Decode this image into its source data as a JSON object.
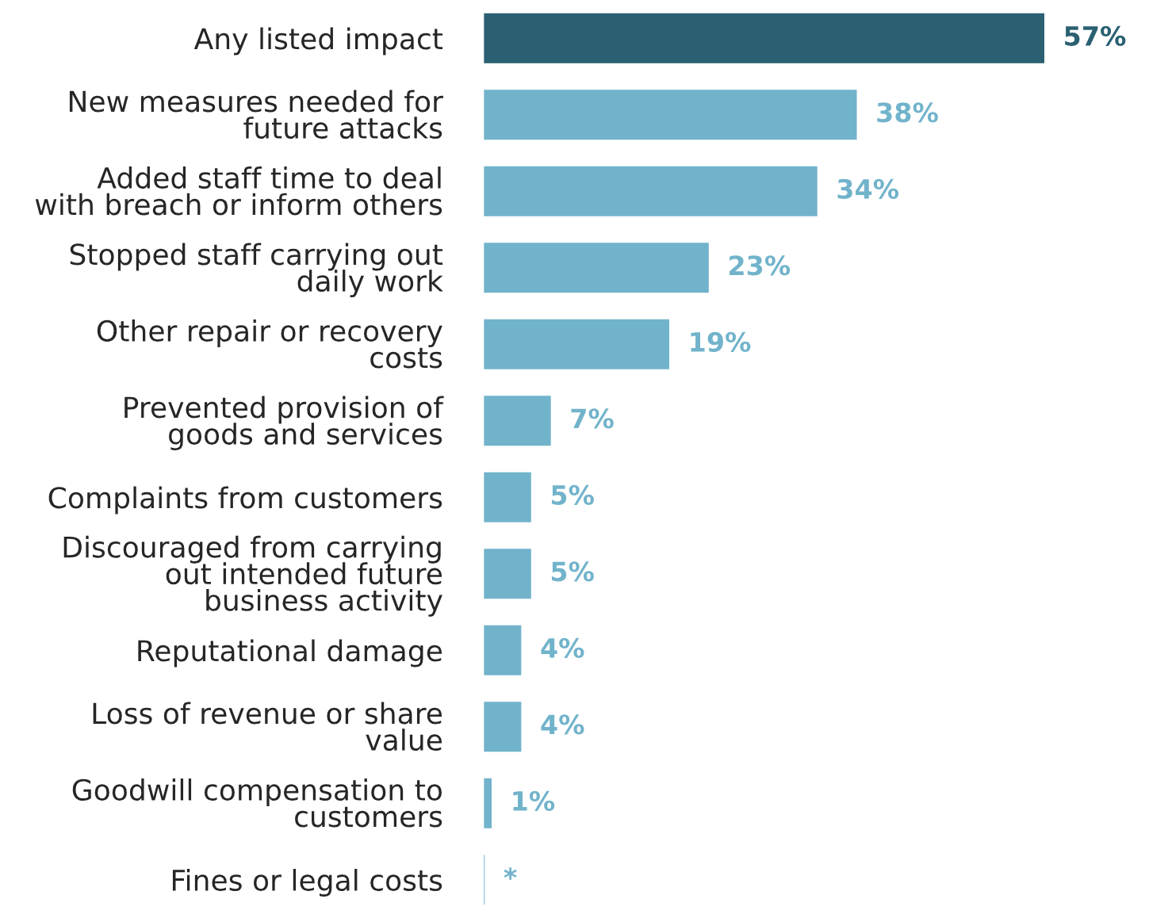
{
  "chart_data": {
    "type": "bar",
    "orientation": "horizontal",
    "categories": [
      "Any listed impact",
      "New measures needed for\nfuture attacks",
      "Added staff time to deal\nwith breach or inform others",
      "Stopped staff carrying out\ndaily work",
      "Other repair or recovery\ncosts",
      "Prevented provision of\ngoods and services",
      "Complaints from customers",
      "Discouraged from carrying\nout intended future\nbusiness activity",
      "Reputational damage",
      "Loss of revenue or share\nvalue",
      "Goodwill compensation to\ncustomers",
      "Fines or legal costs"
    ],
    "values": [
      57,
      38,
      34,
      23,
      19,
      7,
      5,
      5,
      4,
      4,
      1,
      0.3
    ],
    "value_labels": [
      "57%",
      "38%",
      "34%",
      "23%",
      "19%",
      "7%",
      "5%",
      "5%",
      "4%",
      "4%",
      "1%",
      "*"
    ],
    "colors": [
      "#2a6072",
      "#71b3cb",
      "#71b3cb",
      "#71b3cb",
      "#71b3cb",
      "#71b3cb",
      "#71b3cb",
      "#71b3cb",
      "#71b3cb",
      "#71b3cb",
      "#71b3cb",
      "#71b3cb"
    ],
    "grid": false,
    "legend": false
  }
}
